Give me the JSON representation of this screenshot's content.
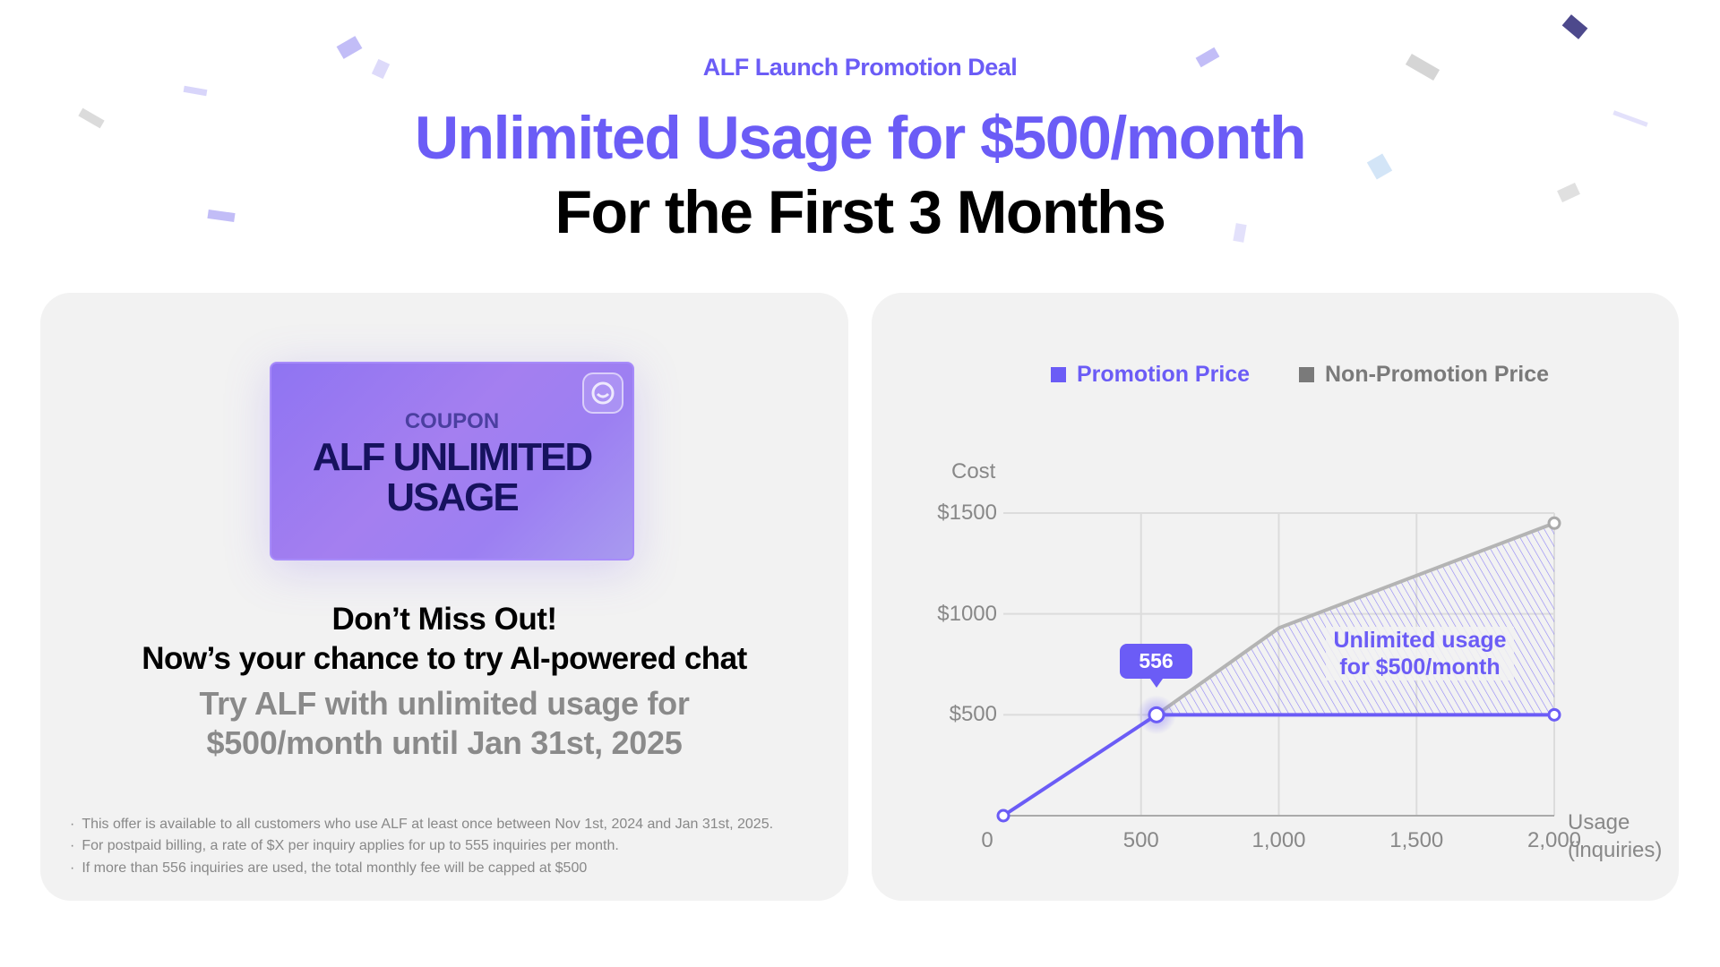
{
  "header": {
    "eyebrow": "ALF Launch Promotion Deal",
    "title_line1": "Unlimited Usage for $500/month",
    "title_line2": "For the First 3 Months"
  },
  "colors": {
    "accent": "#6b5cf6",
    "non_promo": "#b4b4b4",
    "card_bg": "#f2f2f2",
    "coupon_text": "#16125e"
  },
  "left_card": {
    "coupon": {
      "label": "COUPON",
      "title_line1": "ALF UNLIMITED",
      "title_line2": "USAGE",
      "icon": "chat-bubble-icon"
    },
    "headline1": "Don’t Miss Out!",
    "headline2": "Now’s your chance to try AI-powered chat",
    "sub1": "Try ALF with unlimited usage for",
    "sub2": "$500/month until Jan 31st, 2025",
    "notes": [
      "This offer is available to all customers who use ALF at least once between Nov 1st, 2024 and Jan 31st, 2025.",
      "For postpaid billing, a rate of $X per inquiry applies for up to 555 inquiries per month.",
      "If more than 556 inquiries are used, the total monthly fee will be capped at $500"
    ]
  },
  "chart_data": {
    "type": "line",
    "ylabel": "Cost",
    "xlabel_line1": "Usage",
    "xlabel_line2": "(inquiries)",
    "xlim": [
      0,
      2000
    ],
    "ylim": [
      0,
      1500
    ],
    "x_ticks": [
      "0",
      "500",
      "1,000",
      "1,500",
      "2,000"
    ],
    "y_ticks": [
      "$500",
      "$1000",
      "$1500"
    ],
    "grid": true,
    "legend_position": "top",
    "series": [
      {
        "name": "Promotion Price",
        "color": "#6b5cf6",
        "points": [
          [
            0,
            0
          ],
          [
            556,
            500
          ],
          [
            2000,
            500
          ]
        ]
      },
      {
        "name": "Non-Promotion Price",
        "color": "#b4b4b4",
        "legend_color": "#7a7a7a",
        "points": [
          [
            556,
            500
          ],
          [
            1000,
            930
          ],
          [
            2000,
            1450
          ]
        ]
      }
    ],
    "tooltip": "556",
    "annotation_line1": "Unlimited usage",
    "annotation_line2": "for $500/month"
  }
}
